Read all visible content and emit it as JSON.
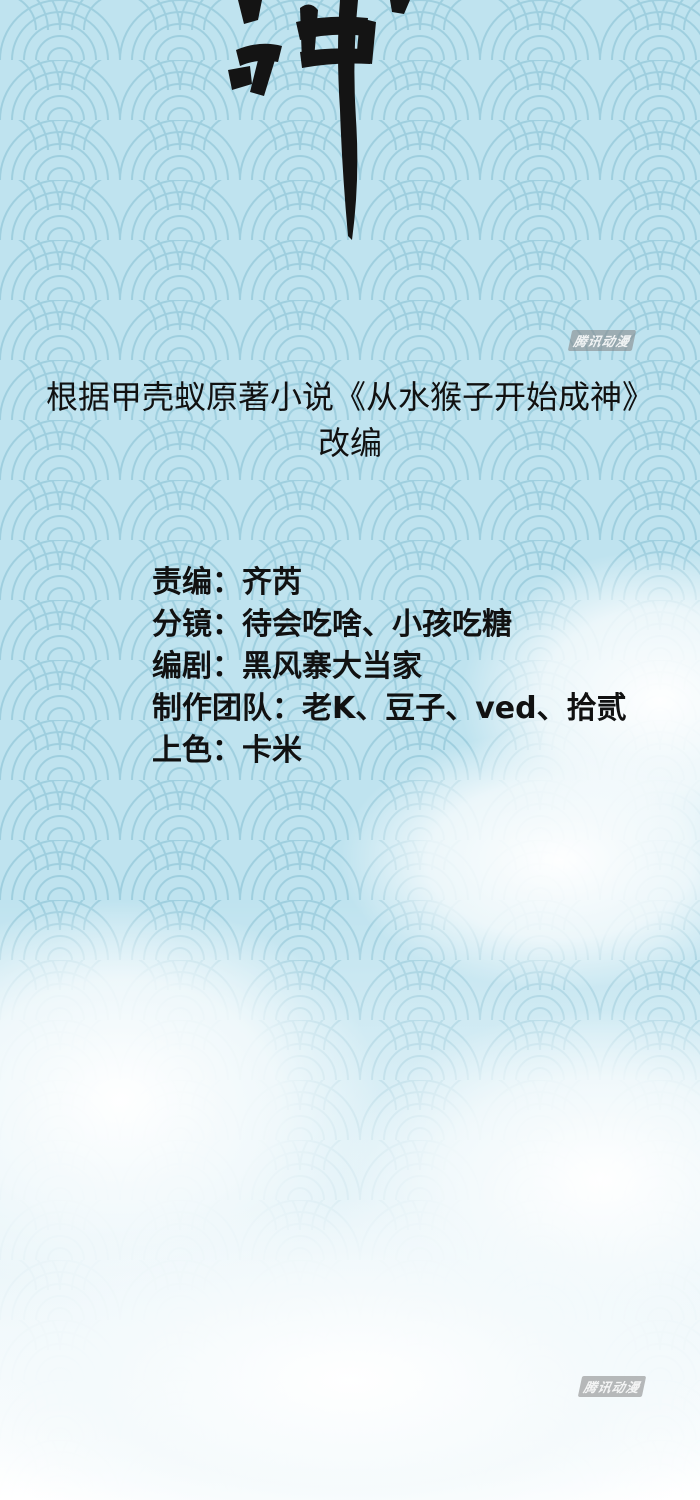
{
  "source": {
    "line1": "根据甲壳蚁原著小说《从水猴子开始成神》",
    "line2": "改编"
  },
  "credits": [
    {
      "role": "责编：",
      "names": "齐芮"
    },
    {
      "role": "分镜：",
      "names": "待会吃啥、小孩吃糖"
    },
    {
      "role": "编剧：",
      "names": "黑风寨大当家"
    },
    {
      "role": "制作团队：",
      "names": "老K、豆子、ved、拾贰"
    },
    {
      "role": "上色：",
      "names": "卡米"
    }
  ],
  "watermark": "腾讯动漫",
  "colors": {
    "sky_blue": "#bfe3ef",
    "wave_line": "#9fcfdf",
    "cloud": "#f6fbfd",
    "text": "#111111"
  }
}
